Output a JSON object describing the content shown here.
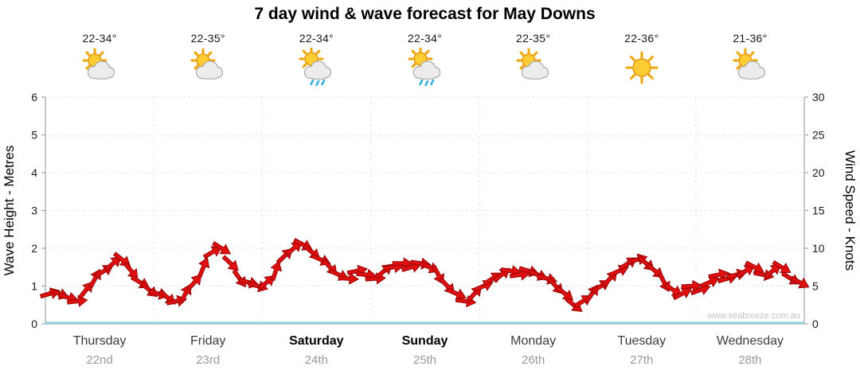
{
  "title": "7 day wind & wave forecast for May Downs",
  "watermark": "www.seabreeze.com.au",
  "days": [
    {
      "name": "Thursday",
      "date": "22nd",
      "temp": "22-34°",
      "icon": "sun-cloud",
      "bold": false
    },
    {
      "name": "Friday",
      "date": "23rd",
      "temp": "22-35°",
      "icon": "sun-cloud",
      "bold": false
    },
    {
      "name": "Saturday",
      "date": "24th",
      "temp": "22-34°",
      "icon": "sun-cloud-rain",
      "bold": true
    },
    {
      "name": "Sunday",
      "date": "25th",
      "temp": "22-34°",
      "icon": "sun-cloud-rain",
      "bold": true
    },
    {
      "name": "Monday",
      "date": "26th",
      "temp": "22-35°",
      "icon": "sun-cloud",
      "bold": false
    },
    {
      "name": "Tuesday",
      "date": "27th",
      "temp": "22-36°",
      "icon": "sun",
      "bold": false
    },
    {
      "name": "Wednesday",
      "date": "28th",
      "temp": "21-36°",
      "icon": "sun-cloud",
      "bold": false
    }
  ],
  "chart_data": {
    "type": "line",
    "title": "7 day wind & wave forecast for May Downs",
    "left_axis": {
      "label": "Wave Height - Metres",
      "min": 0,
      "max": 6,
      "ticks": [
        0,
        1,
        2,
        3,
        4,
        5,
        6
      ]
    },
    "right_axis": {
      "label": "Wind Speed - Knots",
      "min": 0,
      "max": 30,
      "ticks": [
        0,
        5,
        10,
        15,
        20,
        25,
        30
      ]
    },
    "x_categories": [
      "Thursday 22nd",
      "Friday 23rd",
      "Saturday 24th",
      "Sunday 25th",
      "Monday 26th",
      "Tuesday 27th",
      "Wednesday 28th"
    ],
    "grid": true,
    "series": [
      {
        "name": "Wind Speed (knots, 2-hourly wind-direction arrows)",
        "color": "#e01010",
        "outline": "#8f0000",
        "points_per_day": 12,
        "values": [
          4.0,
          4.0,
          3.5,
          3.0,
          4.5,
          6.0,
          7.0,
          8.0,
          8.5,
          7.0,
          5.5,
          4.5,
          4.0,
          3.5,
          3.0,
          4.0,
          5.5,
          7.5,
          9.5,
          10.0,
          8.0,
          6.0,
          5.5,
          5.0,
          5.5,
          7.0,
          9.0,
          10.0,
          10.5,
          9.5,
          8.5,
          7.5,
          6.5,
          6.0,
          7.0,
          6.5,
          6.0,
          7.0,
          7.5,
          8.0,
          7.5,
          8.0,
          7.5,
          6.5,
          5.0,
          4.0,
          3.0,
          4.0,
          5.0,
          6.0,
          6.5,
          7.0,
          6.5,
          7.0,
          6.5,
          6.0,
          5.0,
          4.0,
          2.5,
          3.0,
          4.0,
          5.0,
          6.0,
          7.0,
          8.0,
          8.5,
          8.0,
          7.0,
          5.5,
          4.5,
          4.0,
          5.0,
          4.5,
          5.5,
          6.5,
          6.0,
          6.5,
          7.0,
          7.5,
          6.5,
          7.0,
          7.5,
          6.0,
          5.5
        ]
      },
      {
        "name": "Wave Height (metres) - flat at 0 (inland location)",
        "color": "#8fd8e8",
        "values": [
          0,
          0,
          0,
          0,
          0,
          0,
          0
        ]
      }
    ],
    "colors": {
      "arrow": "#e01010",
      "arrow_outline": "#8f0000",
      "wave_line": "#8fd8e8",
      "grid": "#dcdcdc",
      "axis": "#aaaaaa",
      "tick_text": "#1a1a1a",
      "axis_title": "#000000",
      "weekday": "#3d3d3d",
      "weekend": "#000000",
      "date": "#9a9a9a",
      "watermark": "#c2c2c2"
    }
  }
}
